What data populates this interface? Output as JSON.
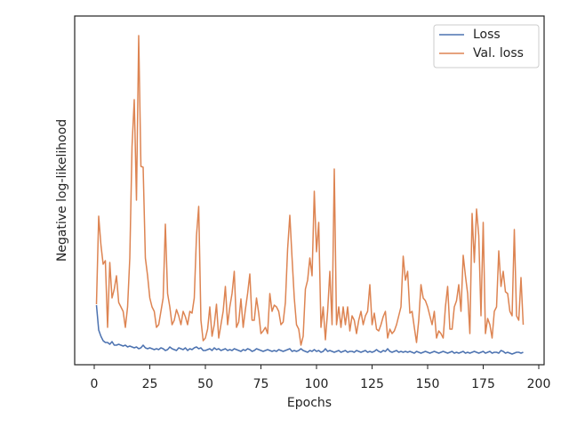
{
  "chart_data": {
    "type": "line",
    "xlabel": "Epochs",
    "ylabel": "Negative log-likelihood",
    "xlim": [
      -8.8,
      202.4
    ],
    "xticks": [
      0,
      25,
      50,
      75,
      100,
      125,
      150,
      175,
      200
    ],
    "ylim": [
      0,
      98
    ],
    "legend": "upper right",
    "x": [
      1,
      2,
      3,
      4,
      5,
      6,
      7,
      8,
      9,
      10,
      11,
      12,
      13,
      14,
      15,
      16,
      17,
      18,
      19,
      20,
      21,
      22,
      23,
      24,
      25,
      26,
      27,
      28,
      29,
      30,
      31,
      32,
      33,
      34,
      35,
      36,
      37,
      38,
      39,
      40,
      41,
      42,
      43,
      44,
      45,
      46,
      47,
      48,
      49,
      50,
      51,
      52,
      53,
      54,
      55,
      56,
      57,
      58,
      59,
      60,
      61,
      62,
      63,
      64,
      65,
      66,
      67,
      68,
      69,
      70,
      71,
      72,
      73,
      74,
      75,
      76,
      77,
      78,
      79,
      80,
      81,
      82,
      83,
      84,
      85,
      86,
      87,
      88,
      89,
      90,
      91,
      92,
      93,
      94,
      95,
      96,
      97,
      98,
      99,
      100,
      101,
      102,
      103,
      104,
      105,
      106,
      107,
      108,
      109,
      110,
      111,
      112,
      113,
      114,
      115,
      116,
      117,
      118,
      119,
      120,
      121,
      122,
      123,
      124,
      125,
      126,
      127,
      128,
      129,
      130,
      131,
      132,
      133,
      134,
      135,
      136,
      137,
      138,
      139,
      140,
      141,
      142,
      143,
      144,
      145,
      146,
      147,
      148,
      149,
      150,
      151,
      152,
      153,
      154,
      155,
      156,
      157,
      158,
      159,
      160,
      161,
      162,
      163,
      164,
      165,
      166,
      167,
      168,
      169,
      170,
      171,
      172,
      173,
      174,
      175,
      176,
      177,
      178,
      179,
      180,
      181,
      182,
      183,
      184,
      185,
      186,
      187,
      188,
      189,
      190,
      191,
      192,
      193
    ],
    "series": [
      {
        "name": "Loss",
        "color": "#4c72b0",
        "values": [
          16.75,
          9.75,
          8,
          6.75,
          6.25,
          6.25,
          5.75,
          6.5,
          5.5,
          5.5,
          5.75,
          5.5,
          5.25,
          5.5,
          5,
          5.25,
          5,
          4.75,
          5,
          4.5,
          4.75,
          5.5,
          4.75,
          4.5,
          4.75,
          4.5,
          4.25,
          4.5,
          4.25,
          4.75,
          4.5,
          4,
          4.25,
          5,
          4.5,
          4.25,
          4,
          4.75,
          4.5,
          4.25,
          4.75,
          4,
          4.5,
          4.25,
          4.75,
          5,
          4.5,
          4.75,
          4,
          4,
          4.25,
          4.5,
          4,
          4.75,
          4.25,
          4.5,
          4,
          4.25,
          4.5,
          4,
          4.25,
          4,
          4.5,
          4.25,
          4,
          3.75,
          4.25,
          4,
          4.5,
          4.25,
          3.75,
          4,
          4.5,
          4.25,
          4,
          3.75,
          4,
          4.25,
          4,
          3.75,
          4,
          3.75,
          4.25,
          4,
          3.75,
          4,
          4.25,
          4.5,
          3.75,
          4,
          3.75,
          4,
          4.5,
          4,
          3.75,
          3.5,
          4,
          3.75,
          4.25,
          3.75,
          4,
          3.5,
          3.75,
          4.5,
          3.75,
          4,
          3.75,
          3.5,
          3.75,
          4,
          3.5,
          3.75,
          4,
          3.5,
          3.75,
          3.75,
          3.5,
          4,
          3.75,
          3.5,
          3.75,
          4,
          3.5,
          3.75,
          3.5,
          3.75,
          4.25,
          3.75,
          3.5,
          4,
          3.75,
          4.5,
          3.75,
          3.5,
          3.75,
          4,
          3.5,
          3.75,
          3.5,
          3.75,
          3.5,
          3.75,
          3.5,
          3.25,
          3.75,
          3.5,
          3.25,
          3.5,
          3.75,
          3.5,
          3.25,
          3.5,
          3.75,
          3.5,
          3.25,
          3.5,
          3.75,
          3.5,
          3.25,
          3.5,
          3.75,
          3.25,
          3.5,
          3.25,
          3.5,
          3.75,
          3.25,
          3.5,
          3.25,
          3.5,
          3.75,
          3.5,
          3.25,
          3.5,
          3.75,
          3.25,
          3.5,
          3.75,
          3.25,
          3.5,
          3.5,
          3.25,
          4,
          3.75,
          3.25,
          3.5,
          3.25,
          3,
          3.25,
          3.5,
          3.5,
          3.25,
          3.5
        ]
      },
      {
        "name": "Val. loss",
        "color": "#dd8452",
        "values": [
          17,
          41.75,
          33.75,
          28.25,
          29.25,
          10.5,
          28.75,
          18.75,
          21.25,
          25,
          17.5,
          16.25,
          15,
          10.5,
          16.25,
          30,
          61.25,
          74.5,
          46.25,
          92.5,
          55.75,
          55.5,
          30,
          25,
          18.75,
          16.25,
          15,
          10.5,
          11.25,
          15,
          18.75,
          39.5,
          20,
          16.25,
          11.25,
          12.5,
          15.5,
          13.75,
          11.25,
          15,
          13.5,
          11.25,
          15,
          14.5,
          18.75,
          36.25,
          44.5,
          12.5,
          6.75,
          7.5,
          10,
          16.25,
          8,
          11.25,
          17,
          7.5,
          11.25,
          15,
          22,
          11.25,
          16.25,
          20,
          26.25,
          10.5,
          12,
          18.5,
          10.5,
          15.5,
          20,
          25.5,
          12.5,
          12.5,
          18.75,
          14.5,
          8.75,
          9.5,
          10.5,
          8.75,
          20,
          15,
          16.75,
          16.25,
          15,
          11.25,
          12,
          17.5,
          32.5,
          42,
          30,
          18.75,
          11.25,
          10,
          5.5,
          8,
          21.25,
          23.75,
          30,
          25,
          48.75,
          31.75,
          40,
          10.5,
          16.25,
          7,
          15,
          26.25,
          11.25,
          55,
          11.25,
          16.25,
          10.5,
          16.25,
          11.25,
          16.25,
          9.5,
          13.75,
          12.5,
          8.75,
          12.5,
          15,
          11.25,
          13.75,
          15,
          22.5,
          11.25,
          14.5,
          10,
          9.5,
          11.25,
          13.5,
          15,
          7.5,
          10,
          8.75,
          9.5,
          11.25,
          13.75,
          16.25,
          30.5,
          23.75,
          26.25,
          14.5,
          15,
          10.5,
          6.25,
          12.5,
          22.5,
          18.75,
          18,
          16.25,
          13.75,
          11.25,
          15,
          7.5,
          9.5,
          8.75,
          7.5,
          16.25,
          22,
          10,
          10,
          16.25,
          18,
          22.5,
          15,
          30.75,
          25,
          20,
          8.75,
          42.5,
          28.75,
          43.75,
          36.25,
          13.75,
          40,
          8.75,
          13,
          11.25,
          7.5,
          15,
          16.25,
          32,
          22,
          26.25,
          20.5,
          20,
          15,
          13.75,
          38,
          13.75,
          12.5,
          24.5,
          11.25
        ]
      }
    ]
  }
}
